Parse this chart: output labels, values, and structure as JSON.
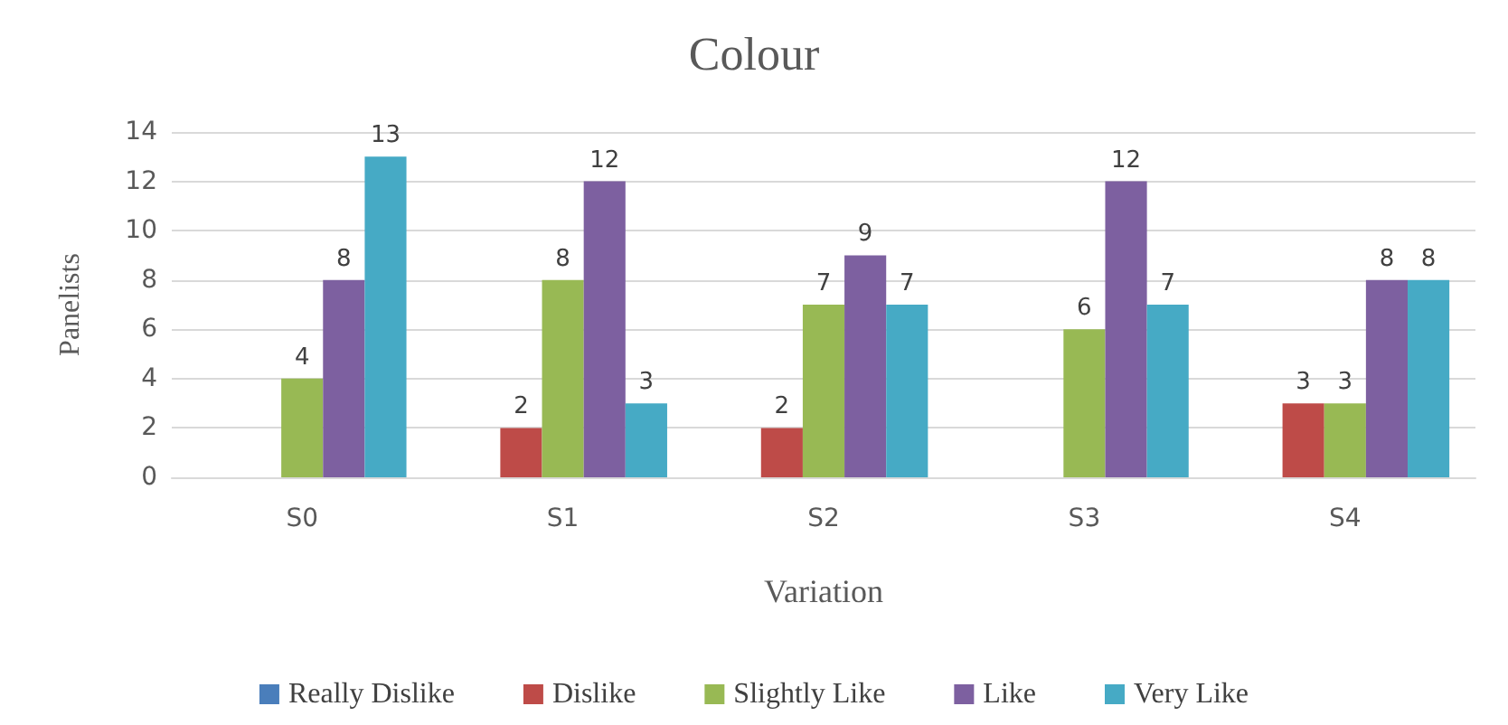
{
  "chart_data": {
    "type": "bar",
    "title": "Colour",
    "xlabel": "Variation",
    "ylabel": "Panelists",
    "categories": [
      "S0",
      "S1",
      "S2",
      "S3",
      "S4"
    ],
    "series": [
      {
        "name": "Really Dislike",
        "color": "#4a7ebb",
        "values": [
          null,
          null,
          null,
          null,
          null
        ]
      },
      {
        "name": "Dislike",
        "color": "#be4b48",
        "values": [
          null,
          2,
          2,
          null,
          3
        ]
      },
      {
        "name": "Slightly Like",
        "color": "#98b954",
        "values": [
          4,
          8,
          7,
          6,
          3
        ]
      },
      {
        "name": "Like",
        "color": "#7d60a0",
        "values": [
          8,
          12,
          9,
          12,
          8
        ]
      },
      {
        "name": "Very Like",
        "color": "#46aac5",
        "values": [
          13,
          3,
          7,
          7,
          8
        ]
      }
    ],
    "ylim": [
      0,
      14
    ],
    "yticks": [
      0,
      2,
      4,
      6,
      8,
      10,
      12,
      14
    ],
    "grid": "y",
    "legend": "bottom",
    "data_labels": true
  }
}
